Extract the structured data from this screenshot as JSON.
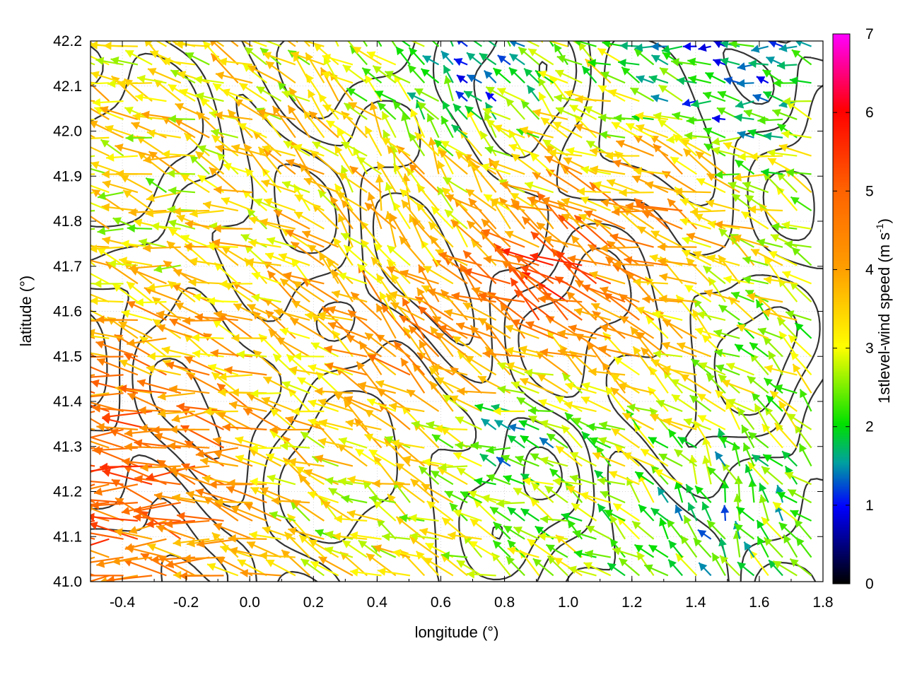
{
  "chart_data": {
    "type": "vector-field",
    "xlabel": "longitude (°)",
    "ylabel": "latitude (°)",
    "xlim": [
      -0.5,
      1.8
    ],
    "ylim": [
      41.0,
      42.2
    ],
    "x_ticks": [
      "-0.4",
      "-0.2",
      "0.0",
      "0.2",
      "0.4",
      "0.6",
      "0.8",
      "1.0",
      "1.2",
      "1.4",
      "1.6",
      "1.8"
    ],
    "y_ticks": [
      "41.0",
      "41.1",
      "41.2",
      "41.3",
      "41.4",
      "41.5",
      "41.6",
      "41.7",
      "41.8",
      "41.9",
      "42.0",
      "42.1",
      "42.2"
    ],
    "colorbar": {
      "label_main": "1stlevel-wind speed (m s",
      "label_exp": "-1",
      "label_close": ")",
      "range": [
        0,
        7
      ],
      "ticks": [
        "0",
        "1",
        "2",
        "3",
        "4",
        "5",
        "6",
        "7"
      ],
      "colors": [
        "#000000",
        "#0000ff",
        "#00a060",
        "#00ff00",
        "#ffff00",
        "#ffa000",
        "#ff6000",
        "#ff0000",
        "#ff00ff"
      ]
    },
    "grid": true,
    "contours": "terrain elevation (dark gray isolines)",
    "arrow_spacing_deg": 0.045,
    "wind_regions": [
      {
        "lon": -0.45,
        "lat": 41.2,
        "speed": 5.2,
        "dir_deg": 180
      },
      {
        "lon": -0.2,
        "lat": 41.3,
        "speed": 4.8,
        "dir_deg": 175
      },
      {
        "lon": 0.1,
        "lat": 41.5,
        "speed": 3.6,
        "dir_deg": 160
      },
      {
        "lon": -0.3,
        "lat": 41.8,
        "speed": 3.0,
        "dir_deg": 170
      },
      {
        "lon": 0.6,
        "lat": 41.5,
        "speed": 4.6,
        "dir_deg": 140
      },
      {
        "lon": 1.0,
        "lat": 41.65,
        "speed": 5.5,
        "dir_deg": 150
      },
      {
        "lon": 1.3,
        "lat": 41.8,
        "speed": 4.2,
        "dir_deg": 160
      },
      {
        "lon": 0.5,
        "lat": 41.85,
        "speed": 3.6,
        "dir_deg": 110
      },
      {
        "lon": 0.7,
        "lat": 42.1,
        "speed": 1.3,
        "dir_deg": 130
      },
      {
        "lon": 1.5,
        "lat": 42.1,
        "speed": 1.2,
        "dir_deg": 180
      },
      {
        "lon": 1.5,
        "lat": 41.15,
        "speed": 1.8,
        "dir_deg": 115
      },
      {
        "lon": 0.85,
        "lat": 41.3,
        "speed": 1.6,
        "dir_deg": 170
      },
      {
        "lon": 1.6,
        "lat": 41.5,
        "speed": 2.6,
        "dir_deg": 145
      },
      {
        "lon": 0.3,
        "lat": 41.15,
        "speed": 2.9,
        "dir_deg": 150
      }
    ]
  }
}
